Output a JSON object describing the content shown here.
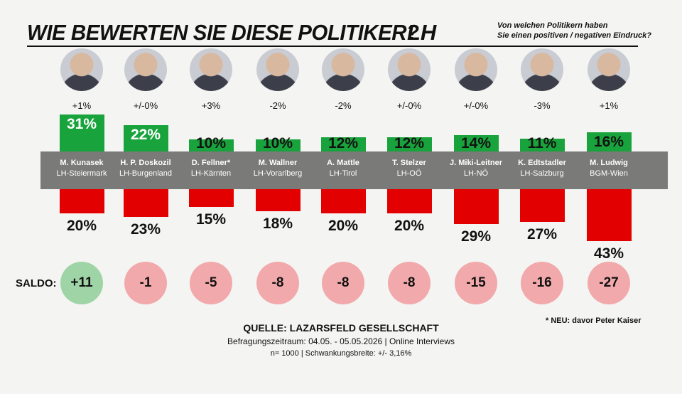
{
  "header": {
    "title": "WIE BEWERTEN SIE DIESE POLITIKER?",
    "subtitle": "LH",
    "question_line1": "Von welchen Politikern haben",
    "question_line2": "Sie einen positiven / negativen Eindruck?"
  },
  "chart_data": {
    "type": "bar",
    "categories": [
      "M. Kunasek",
      "H. P. Doskozil",
      "D. Fellner*",
      "M. Wallner",
      "A. Mattle",
      "T. Stelzer",
      "J. Miki-Leitner",
      "K. Edtstadler",
      "M. Ludwig"
    ],
    "roles": [
      "LH-Steiermark",
      "LH-Burgenland",
      "LH-Kärnten",
      "LH-Vorarlberg",
      "LH-Tirol",
      "LH-OÖ",
      "LH-NÖ",
      "LH-Salzburg",
      "BGM-Wien"
    ],
    "changes": [
      "+1%",
      "+/-0%",
      "+3%",
      "-2%",
      "-2%",
      "+/-0%",
      "+/-0%",
      "-3%",
      "+1%"
    ],
    "series": [
      {
        "name": "positiv",
        "values": [
          31,
          22,
          10,
          10,
          12,
          12,
          14,
          11,
          16
        ],
        "labels": [
          "31%",
          "22%",
          "10%",
          "10%",
          "12%",
          "12%",
          "14%",
          "11%",
          "16%"
        ],
        "color": "#19a33c"
      },
      {
        "name": "negativ",
        "values": [
          20,
          23,
          15,
          18,
          20,
          20,
          29,
          27,
          43
        ],
        "labels": [
          "20%",
          "23%",
          "15%",
          "18%",
          "20%",
          "20%",
          "29%",
          "27%",
          "43%"
        ],
        "color": "#e30000"
      }
    ],
    "saldo_label": "SALDO:",
    "saldo": [
      "+11",
      "-1",
      "-5",
      "-8",
      "-8",
      "-8",
      "-15",
      "-16",
      "-27"
    ],
    "saldo_colors": {
      "positive": "#9fd4a6",
      "negative": "#f2a9ab"
    },
    "band_color": "#7a7a78"
  },
  "footnote": "*  NEU:  davor Peter Kaiser",
  "source": {
    "line1": "QUELLE: LAZARSFELD GESELLSCHAFT",
    "line2": "Befragungszeitraum: 04.05. - 05.05.2026 | Online Interviews",
    "line3": "n= 1000 | Schwankungsbreite: +/- 3,16%"
  }
}
